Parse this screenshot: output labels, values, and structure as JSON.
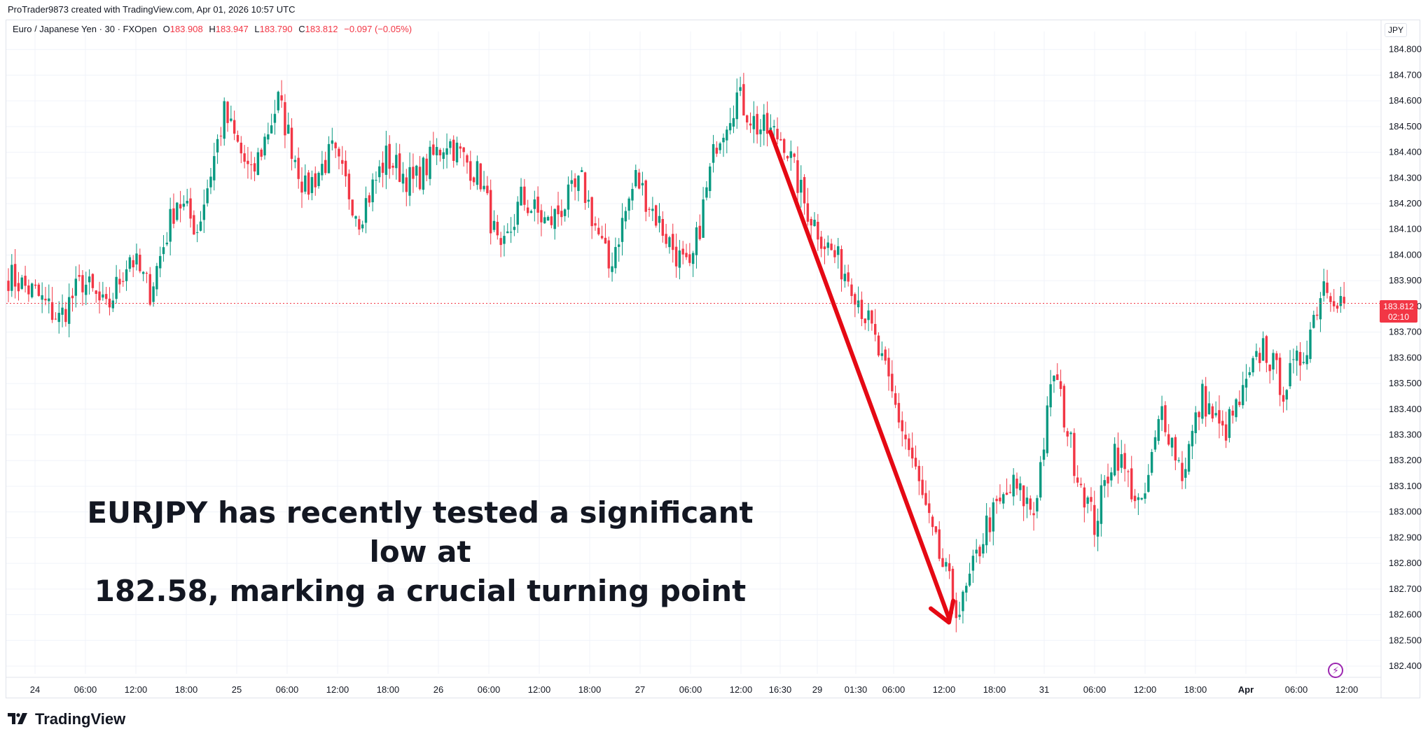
{
  "header": {
    "credit": "ProTrader9873 created with TradingView.com, Apr 01, 2026 10:57 UTC"
  },
  "legend": {
    "symbol": "Euro / Japanese Yen · 30 · FXOpen",
    "open_label": "O",
    "open": "183.908",
    "high_label": "H",
    "high": "183.947",
    "low_label": "L",
    "low": "183.790",
    "close_label": "C",
    "close": "183.812",
    "change": "−0.097 (−0.05%)"
  },
  "price_axis": {
    "currency": "JPY"
  },
  "price_badge": {
    "price": "183.812",
    "countdown": "02:10"
  },
  "annotation": {
    "line1": "EURJPY has recently tested a significant low at",
    "line2": "182.58, marking a crucial turning point"
  },
  "brand": {
    "name": "TradingView"
  },
  "colors": {
    "up": "#089981",
    "down": "#f23645",
    "arrow": "#e50914",
    "grid": "#f0f3fa",
    "text": "#131722",
    "replay": "#9c27b0"
  },
  "icons": {
    "replay": "lightning-bolt-icon",
    "logo": "tradingview-logo-icon"
  },
  "chart_data": {
    "type": "candlestick",
    "symbol": "EURJPY",
    "timeframe": "30",
    "y_ticks": [
      "184.800",
      "184.700",
      "184.600",
      "184.500",
      "184.400",
      "184.300",
      "184.200",
      "184.100",
      "184.000",
      "183.900",
      "183.800",
      "183.700",
      "183.600",
      "183.500",
      "183.400",
      "183.300",
      "183.200",
      "183.100",
      "183.000",
      "182.900",
      "182.800",
      "182.700",
      "182.600",
      "182.500",
      "182.400"
    ],
    "ylim": [
      182.37,
      184.87
    ],
    "x_ticks": [
      "24",
      "06:00",
      "12:00",
      "18:00",
      "25",
      "06:00",
      "12:00",
      "18:00",
      "26",
      "06:00",
      "12:00",
      "18:00",
      "27",
      "06:00",
      "12:00",
      "16:30",
      "29",
      "01:30",
      "06:00",
      "12:00",
      "18:00",
      "31",
      "06:00",
      "12:00",
      "18:00",
      "Apr",
      "06:00",
      "12:00"
    ],
    "last_price": 183.812,
    "annotated_low": 182.58,
    "arrow": {
      "from_price": 184.48,
      "to_price": 182.57
    },
    "waypoints": [
      [
        0,
        183.92
      ],
      [
        8,
        183.85
      ],
      [
        15,
        183.75
      ],
      [
        22,
        183.9
      ],
      [
        29,
        183.78
      ],
      [
        36,
        184.0
      ],
      [
        42,
        183.86
      ],
      [
        50,
        184.22
      ],
      [
        56,
        184.1
      ],
      [
        64,
        184.55
      ],
      [
        72,
        184.3
      ],
      [
        80,
        184.6
      ],
      [
        88,
        184.25
      ],
      [
        96,
        184.4
      ],
      [
        104,
        184.15
      ],
      [
        112,
        184.38
      ],
      [
        120,
        184.28
      ],
      [
        130,
        184.45
      ],
      [
        140,
        184.3
      ],
      [
        146,
        183.98
      ],
      [
        152,
        184.22
      ],
      [
        160,
        184.12
      ],
      [
        170,
        184.28
      ],
      [
        178,
        183.95
      ],
      [
        186,
        184.3
      ],
      [
        196,
        184.05
      ],
      [
        202,
        183.92
      ],
      [
        210,
        184.45
      ],
      [
        216,
        184.62
      ],
      [
        222,
        184.5
      ],
      [
        230,
        184.45
      ],
      [
        236,
        184.2
      ],
      [
        242,
        184.05
      ],
      [
        250,
        183.9
      ],
      [
        256,
        183.7
      ],
      [
        262,
        183.45
      ],
      [
        268,
        183.2
      ],
      [
        274,
        182.9
      ],
      [
        282,
        182.6
      ],
      [
        290,
        182.95
      ],
      [
        298,
        183.1
      ],
      [
        304,
        183.0
      ],
      [
        310,
        183.55
      ],
      [
        316,
        183.2
      ],
      [
        322,
        182.95
      ],
      [
        328,
        183.25
      ],
      [
        336,
        183.0
      ],
      [
        342,
        183.4
      ],
      [
        348,
        183.15
      ],
      [
        354,
        183.45
      ],
      [
        360,
        183.3
      ],
      [
        366,
        183.45
      ],
      [
        372,
        183.65
      ],
      [
        378,
        183.48
      ],
      [
        384,
        183.62
      ],
      [
        390,
        183.9
      ],
      [
        396,
        183.81
      ]
    ]
  }
}
